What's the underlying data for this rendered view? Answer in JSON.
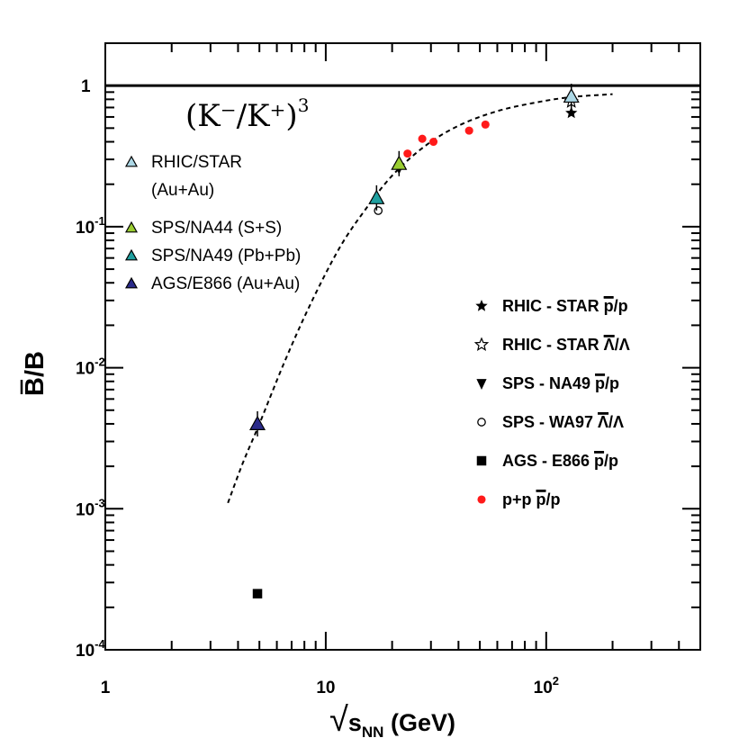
{
  "chart_data": {
    "type": "scatter",
    "title": "",
    "xlabel": "√s_NN (GeV)",
    "xlabel_parts": {
      "radical": "√",
      "s": "s",
      "sub": "NN",
      "unit": " (GeV)"
    },
    "ylabel": "B̄/B",
    "ylabel_parts": {
      "bar_letter": "B",
      "rest": "/B"
    },
    "xscale": "log",
    "yscale": "log",
    "xlim": [
      1,
      500
    ],
    "ylim": [
      0.0001,
      2
    ],
    "reference_line": {
      "y": 1
    },
    "x_ticks": [
      {
        "value": 1,
        "base": "1",
        "exp": ""
      },
      {
        "value": 10,
        "base": "10",
        "exp": ""
      },
      {
        "value": 100,
        "base": "10",
        "exp": "2"
      }
    ],
    "y_ticks": [
      {
        "value": 1,
        "base": "1",
        "exp": ""
      },
      {
        "value": 0.1,
        "base": "10",
        "exp": "-1"
      },
      {
        "value": 0.01,
        "base": "10",
        "exp": "-2"
      },
      {
        "value": 0.001,
        "base": "10",
        "exp": "-3"
      },
      {
        "value": 0.0001,
        "base": "10",
        "exp": "-4"
      }
    ],
    "formula": {
      "text": "(K⁻/K⁺)",
      "exp": "3"
    },
    "fit_curve": {
      "name": "(K⁻/K⁺)³",
      "style": "dashed",
      "points": [
        [
          3.6,
          0.0011
        ],
        [
          4.2,
          0.0021
        ],
        [
          5.0,
          0.004
        ],
        [
          6.5,
          0.011
        ],
        [
          8.5,
          0.028
        ],
        [
          11.5,
          0.07
        ],
        [
          15,
          0.13
        ],
        [
          20,
          0.23
        ],
        [
          28,
          0.37
        ],
        [
          40,
          0.52
        ],
        [
          60,
          0.66
        ],
        [
          90,
          0.76
        ],
        [
          130,
          0.83
        ],
        [
          200,
          0.87
        ]
      ]
    },
    "series": [
      {
        "name": "RHIC/STAR (Au+Au)",
        "group": "kaon",
        "marker": "triangle-up",
        "color": "#add8e6",
        "x": [
          130
        ],
        "y": [
          0.84
        ]
      },
      {
        "name": "SPS/NA44 (S+S)",
        "group": "kaon",
        "marker": "triangle-up",
        "color": "#9acd32",
        "x": [
          21.5
        ],
        "y": [
          0.28
        ]
      },
      {
        "name": "SPS/NA49 (Pb+Pb)",
        "group": "kaon",
        "marker": "triangle-up",
        "color": "#20a0a0",
        "x": [
          17
        ],
        "y": [
          0.16
        ]
      },
      {
        "name": "AGS/E866 (Au+Au)",
        "group": "kaon",
        "marker": "triangle-up",
        "color": "#2a2a8a",
        "x": [
          4.9
        ],
        "y": [
          0.004
        ]
      },
      {
        "name": "RHIC - STAR p̄/p",
        "group": "baryon",
        "marker": "star-filled",
        "color": "#000000",
        "x": [
          130
        ],
        "y": [
          0.64
        ]
      },
      {
        "name": "RHIC - STAR Λ̄/Λ",
        "group": "baryon",
        "marker": "star-open",
        "color": "#000000",
        "x": [
          130
        ],
        "y": [
          0.77
        ]
      },
      {
        "name": "SPS - NA49 p̄/p",
        "group": "baryon",
        "marker": "triangle-down",
        "color": "#000000",
        "x": [
          21.5
        ],
        "y": [
          0.26
        ]
      },
      {
        "name": "SPS - WA97 Λ̄/Λ",
        "group": "baryon",
        "marker": "circle-open",
        "color": "#000000",
        "x": [
          17.3
        ],
        "y": [
          0.13
        ]
      },
      {
        "name": "AGS - E866 p̄/p",
        "group": "baryon",
        "marker": "square",
        "color": "#000000",
        "x": [
          4.9
        ],
        "y": [
          0.00025
        ]
      },
      {
        "name": "p+p p̄/p",
        "group": "baryon",
        "marker": "circle",
        "color": "#ff1a1a",
        "x": [
          23.5,
          27.4,
          30.8,
          44.7,
          53
        ],
        "y": [
          0.33,
          0.42,
          0.4,
          0.48,
          0.53
        ]
      }
    ],
    "legend_kaon": [
      {
        "series": 0,
        "lines": [
          "RHIC/STAR",
          "(Au+Au)"
        ]
      },
      {
        "series": 1,
        "lines": [
          "SPS/NA44 (S+S)"
        ]
      },
      {
        "series": 2,
        "lines": [
          "SPS/NA49 (Pb+Pb)"
        ]
      },
      {
        "series": 3,
        "lines": [
          "AGS/E866 (Au+Au)"
        ]
      }
    ],
    "legend_baryon": [
      {
        "series": 4,
        "prefix": "RHIC - STAR ",
        "bar": "p",
        "suffix": "/p"
      },
      {
        "series": 5,
        "prefix": "RHIC - STAR ",
        "bar": "Λ",
        "suffix": "/Λ"
      },
      {
        "series": 6,
        "prefix": "SPS - NA49 ",
        "bar": "p",
        "suffix": "/p"
      },
      {
        "series": 7,
        "prefix": "SPS - WA97 ",
        "bar": "Λ",
        "suffix": "/Λ"
      },
      {
        "series": 8,
        "prefix": "AGS - E866 ",
        "bar": "p",
        "suffix": "/p"
      },
      {
        "series": 9,
        "prefix": "p+p ",
        "bar": "p",
        "suffix": "/p"
      }
    ]
  }
}
